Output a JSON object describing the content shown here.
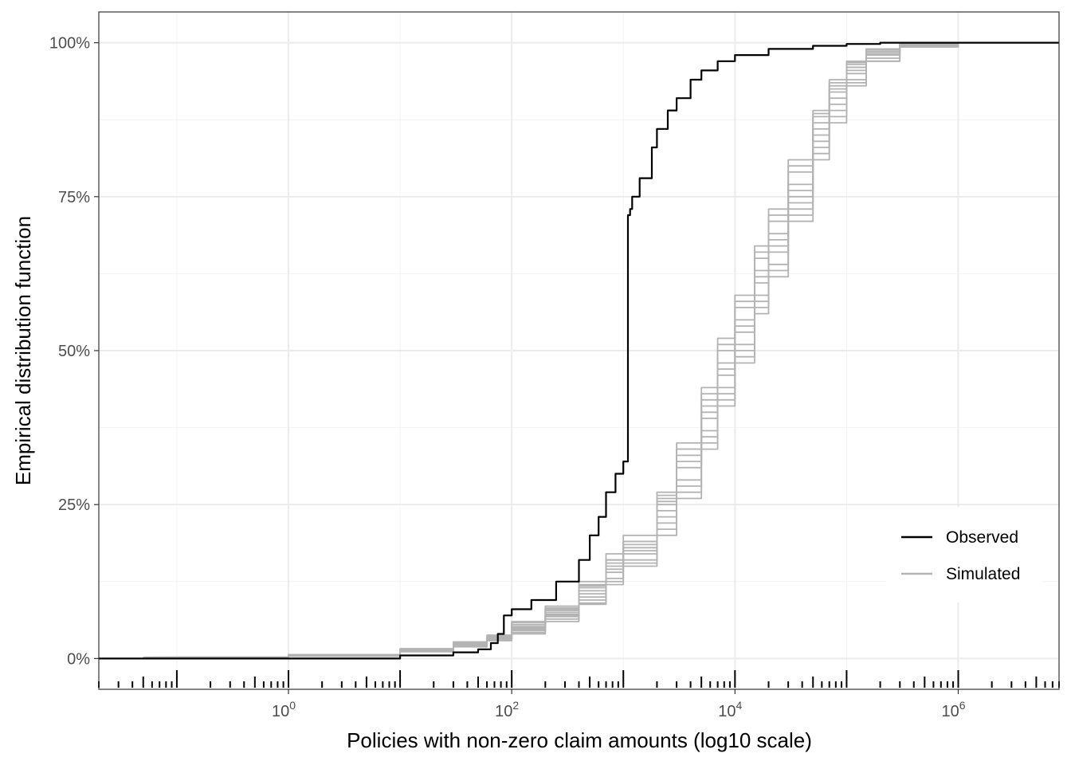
{
  "chart_data": {
    "type": "line",
    "subtype": "empirical cumulative distribution (step)",
    "xlabel": "Policies with non-zero claim amounts (log10 scale)",
    "ylabel": "Empirical distribution function",
    "x_scale": "log10",
    "xlim": [
      0.02,
      8000000
    ],
    "ylim": [
      -0.05,
      1.05
    ],
    "x_ticks": [
      {
        "value": 1,
        "base": "10",
        "exp": "0"
      },
      {
        "value": 100,
        "base": "10",
        "exp": "2"
      },
      {
        "value": 10000,
        "base": "10",
        "exp": "4"
      },
      {
        "value": 1000000,
        "base": "10",
        "exp": "6"
      }
    ],
    "y_ticks": [
      {
        "value": 0,
        "label": "0%"
      },
      {
        "value": 0.25,
        "label": "25%"
      },
      {
        "value": 0.5,
        "label": "50%"
      },
      {
        "value": 0.75,
        "label": "75%"
      },
      {
        "value": 1,
        "label": "100%"
      }
    ],
    "grid": true,
    "rug": "log ticks along bottom of x axis",
    "legend": {
      "position": "bottom-right inside",
      "entries": [
        {
          "label": "Observed",
          "color": "#000000"
        },
        {
          "label": "Simulated",
          "color": "#b3b3b3"
        }
      ]
    },
    "series": [
      {
        "name": "Observed",
        "color": "#000000",
        "points": [
          [
            0.02,
            0
          ],
          [
            1,
            0
          ],
          [
            10,
            0.005
          ],
          [
            30,
            0.01
          ],
          [
            50,
            0.015
          ],
          [
            65,
            0.025
          ],
          [
            75,
            0.04
          ],
          [
            85,
            0.07
          ],
          [
            100,
            0.08
          ],
          [
            150,
            0.095
          ],
          [
            250,
            0.125
          ],
          [
            400,
            0.16
          ],
          [
            500,
            0.2
          ],
          [
            600,
            0.23
          ],
          [
            700,
            0.27
          ],
          [
            850,
            0.3
          ],
          [
            1000,
            0.32
          ],
          [
            1100,
            0.335
          ],
          [
            1100,
            0.72
          ],
          [
            1150,
            0.73
          ],
          [
            1200,
            0.75
          ],
          [
            1400,
            0.78
          ],
          [
            1800,
            0.83
          ],
          [
            2000,
            0.86
          ],
          [
            2500,
            0.89
          ],
          [
            3000,
            0.91
          ],
          [
            4000,
            0.94
          ],
          [
            5000,
            0.955
          ],
          [
            7000,
            0.97
          ],
          [
            10000,
            0.98
          ],
          [
            20000,
            0.99
          ],
          [
            50000,
            0.995
          ],
          [
            100000,
            0.998
          ],
          [
            200000,
            1.0
          ],
          [
            8000000,
            1.0
          ]
        ]
      },
      {
        "name": "Simulated",
        "color": "#b3b3b3",
        "points": [
          [
            0.05,
            0.002
          ],
          [
            1,
            0.005
          ],
          [
            10,
            0.015
          ],
          [
            30,
            0.025
          ],
          [
            60,
            0.035
          ],
          [
            100,
            0.05
          ],
          [
            200,
            0.075
          ],
          [
            400,
            0.11
          ],
          [
            700,
            0.15
          ],
          [
            1000,
            0.18
          ],
          [
            2000,
            0.25
          ],
          [
            3000,
            0.32
          ],
          [
            5000,
            0.4
          ],
          [
            7000,
            0.47
          ],
          [
            10000,
            0.54
          ],
          [
            15000,
            0.62
          ],
          [
            20000,
            0.68
          ],
          [
            30000,
            0.76
          ],
          [
            50000,
            0.86
          ],
          [
            70000,
            0.92
          ],
          [
            100000,
            0.96
          ],
          [
            150000,
            0.985
          ],
          [
            300000,
            0.997
          ],
          [
            1000000,
            1.0
          ],
          [
            4000000,
            1.0
          ]
        ]
      },
      {
        "name": "Simulated",
        "color": "#b3b3b3",
        "points": [
          [
            0.08,
            0.002
          ],
          [
            1,
            0.006
          ],
          [
            10,
            0.014
          ],
          [
            30,
            0.022
          ],
          [
            60,
            0.032
          ],
          [
            100,
            0.045
          ],
          [
            200,
            0.07
          ],
          [
            400,
            0.1
          ],
          [
            700,
            0.14
          ],
          [
            1000,
            0.17
          ],
          [
            2000,
            0.23
          ],
          [
            3000,
            0.29
          ],
          [
            5000,
            0.37
          ],
          [
            7000,
            0.44
          ],
          [
            10000,
            0.51
          ],
          [
            15000,
            0.59
          ],
          [
            20000,
            0.66
          ],
          [
            30000,
            0.74
          ],
          [
            50000,
            0.84
          ],
          [
            70000,
            0.9
          ],
          [
            100000,
            0.95
          ],
          [
            150000,
            0.98
          ],
          [
            300000,
            0.996
          ],
          [
            800000,
            1.0
          ],
          [
            3000000,
            1.0
          ]
        ]
      },
      {
        "name": "Simulated",
        "color": "#b3b3b3",
        "points": [
          [
            0.1,
            0.001
          ],
          [
            1,
            0.004
          ],
          [
            10,
            0.012
          ],
          [
            30,
            0.02
          ],
          [
            60,
            0.03
          ],
          [
            100,
            0.055
          ],
          [
            200,
            0.08
          ],
          [
            400,
            0.12
          ],
          [
            700,
            0.16
          ],
          [
            1000,
            0.19
          ],
          [
            2000,
            0.26
          ],
          [
            3000,
            0.34
          ],
          [
            5000,
            0.42
          ],
          [
            7000,
            0.5
          ],
          [
            10000,
            0.57
          ],
          [
            15000,
            0.65
          ],
          [
            20000,
            0.71
          ],
          [
            30000,
            0.79
          ],
          [
            50000,
            0.88
          ],
          [
            70000,
            0.93
          ],
          [
            100000,
            0.965
          ],
          [
            150000,
            0.988
          ],
          [
            300000,
            0.998
          ],
          [
            1000000,
            1.0
          ],
          [
            5000000,
            1.0
          ]
        ]
      },
      {
        "name": "Simulated",
        "color": "#b3b3b3",
        "points": [
          [
            0.06,
            0.002
          ],
          [
            1,
            0.005
          ],
          [
            10,
            0.013
          ],
          [
            30,
            0.024
          ],
          [
            60,
            0.034
          ],
          [
            100,
            0.048
          ],
          [
            200,
            0.068
          ],
          [
            400,
            0.095
          ],
          [
            700,
            0.13
          ],
          [
            1000,
            0.16
          ],
          [
            2000,
            0.22
          ],
          [
            3000,
            0.28
          ],
          [
            5000,
            0.36
          ],
          [
            7000,
            0.43
          ],
          [
            10000,
            0.5
          ],
          [
            15000,
            0.58
          ],
          [
            20000,
            0.64
          ],
          [
            30000,
            0.73
          ],
          [
            50000,
            0.83
          ],
          [
            70000,
            0.89
          ],
          [
            100000,
            0.94
          ],
          [
            150000,
            0.975
          ],
          [
            300000,
            0.995
          ],
          [
            1000000,
            1.0
          ],
          [
            2000000,
            1.0
          ]
        ]
      },
      {
        "name": "Simulated",
        "color": "#b3b3b3",
        "points": [
          [
            0.12,
            0.001
          ],
          [
            1,
            0.006
          ],
          [
            10,
            0.016
          ],
          [
            30,
            0.027
          ],
          [
            60,
            0.038
          ],
          [
            100,
            0.06
          ],
          [
            200,
            0.085
          ],
          [
            400,
            0.125
          ],
          [
            700,
            0.17
          ],
          [
            1000,
            0.2
          ],
          [
            2000,
            0.27
          ],
          [
            3000,
            0.35
          ],
          [
            5000,
            0.44
          ],
          [
            7000,
            0.52
          ],
          [
            10000,
            0.59
          ],
          [
            15000,
            0.67
          ],
          [
            20000,
            0.73
          ],
          [
            30000,
            0.81
          ],
          [
            50000,
            0.89
          ],
          [
            70000,
            0.94
          ],
          [
            100000,
            0.97
          ],
          [
            150000,
            0.99
          ],
          [
            300000,
            0.999
          ],
          [
            600000,
            1.0
          ],
          [
            3000000,
            1.0
          ]
        ]
      },
      {
        "name": "Simulated",
        "color": "#b3b3b3",
        "points": [
          [
            0.07,
            0.002
          ],
          [
            1,
            0.005
          ],
          [
            10,
            0.013
          ],
          [
            30,
            0.021
          ],
          [
            60,
            0.031
          ],
          [
            100,
            0.042
          ],
          [
            200,
            0.064
          ],
          [
            400,
            0.09
          ],
          [
            700,
            0.125
          ],
          [
            1000,
            0.155
          ],
          [
            2000,
            0.21
          ],
          [
            3000,
            0.27
          ],
          [
            5000,
            0.35
          ],
          [
            7000,
            0.42
          ],
          [
            10000,
            0.49
          ],
          [
            15000,
            0.57
          ],
          [
            20000,
            0.63
          ],
          [
            30000,
            0.72
          ],
          [
            50000,
            0.82
          ],
          [
            70000,
            0.88
          ],
          [
            100000,
            0.935
          ],
          [
            150000,
            0.97
          ],
          [
            300000,
            0.994
          ],
          [
            1000000,
            1.0
          ],
          [
            4000000,
            1.0
          ]
        ]
      },
      {
        "name": "Simulated",
        "color": "#b3b3b3",
        "points": [
          [
            0.09,
            0.002
          ],
          [
            1,
            0.005
          ],
          [
            10,
            0.015
          ],
          [
            30,
            0.026
          ],
          [
            60,
            0.036
          ],
          [
            100,
            0.052
          ],
          [
            200,
            0.078
          ],
          [
            400,
            0.115
          ],
          [
            700,
            0.155
          ],
          [
            1000,
            0.185
          ],
          [
            2000,
            0.255
          ],
          [
            3000,
            0.33
          ],
          [
            5000,
            0.41
          ],
          [
            7000,
            0.48
          ],
          [
            10000,
            0.55
          ],
          [
            15000,
            0.63
          ],
          [
            20000,
            0.69
          ],
          [
            30000,
            0.77
          ],
          [
            50000,
            0.87
          ],
          [
            70000,
            0.925
          ],
          [
            100000,
            0.96
          ],
          [
            150000,
            0.985
          ],
          [
            300000,
            0.997
          ],
          [
            1000000,
            1.0
          ],
          [
            3000000,
            1.0
          ]
        ]
      },
      {
        "name": "Simulated",
        "color": "#b3b3b3",
        "points": [
          [
            0.15,
            0.001
          ],
          [
            1,
            0.004
          ],
          [
            10,
            0.011
          ],
          [
            30,
            0.019
          ],
          [
            60,
            0.029
          ],
          [
            100,
            0.04
          ],
          [
            200,
            0.06
          ],
          [
            400,
            0.088
          ],
          [
            700,
            0.12
          ],
          [
            1000,
            0.15
          ],
          [
            2000,
            0.2
          ],
          [
            3000,
            0.26
          ],
          [
            5000,
            0.34
          ],
          [
            7000,
            0.41
          ],
          [
            10000,
            0.48
          ],
          [
            15000,
            0.56
          ],
          [
            20000,
            0.62
          ],
          [
            30000,
            0.71
          ],
          [
            50000,
            0.81
          ],
          [
            70000,
            0.87
          ],
          [
            100000,
            0.93
          ],
          [
            150000,
            0.97
          ],
          [
            300000,
            0.993
          ],
          [
            1000000,
            1.0
          ],
          [
            5000000,
            1.0
          ]
        ]
      },
      {
        "name": "Simulated",
        "color": "#b3b3b3",
        "points": [
          [
            0.05,
            0.002
          ],
          [
            1,
            0.006
          ],
          [
            10,
            0.014
          ],
          [
            30,
            0.023
          ],
          [
            60,
            0.033
          ],
          [
            100,
            0.058
          ],
          [
            200,
            0.082
          ],
          [
            400,
            0.118
          ],
          [
            700,
            0.16
          ],
          [
            1000,
            0.19
          ],
          [
            2000,
            0.265
          ],
          [
            3000,
            0.34
          ],
          [
            5000,
            0.43
          ],
          [
            7000,
            0.51
          ],
          [
            10000,
            0.58
          ],
          [
            15000,
            0.66
          ],
          [
            20000,
            0.72
          ],
          [
            30000,
            0.8
          ],
          [
            50000,
            0.885
          ],
          [
            70000,
            0.935
          ],
          [
            100000,
            0.968
          ],
          [
            150000,
            0.99
          ],
          [
            300000,
            0.998
          ],
          [
            800000,
            1.0
          ],
          [
            4000000,
            1.0
          ]
        ]
      },
      {
        "name": "Simulated",
        "color": "#b3b3b3",
        "points": [
          [
            0.1,
            0.002
          ],
          [
            1,
            0.005
          ],
          [
            10,
            0.013
          ],
          [
            30,
            0.022
          ],
          [
            60,
            0.032
          ],
          [
            100,
            0.046
          ],
          [
            200,
            0.072
          ],
          [
            400,
            0.105
          ],
          [
            700,
            0.145
          ],
          [
            1000,
            0.175
          ],
          [
            2000,
            0.24
          ],
          [
            3000,
            0.31
          ],
          [
            5000,
            0.39
          ],
          [
            7000,
            0.46
          ],
          [
            10000,
            0.53
          ],
          [
            15000,
            0.61
          ],
          [
            20000,
            0.67
          ],
          [
            30000,
            0.75
          ],
          [
            50000,
            0.85
          ],
          [
            70000,
            0.91
          ],
          [
            100000,
            0.955
          ],
          [
            150000,
            0.982
          ],
          [
            300000,
            0.996
          ],
          [
            1000000,
            1.0
          ],
          [
            3000000,
            1.0
          ]
        ]
      }
    ]
  }
}
